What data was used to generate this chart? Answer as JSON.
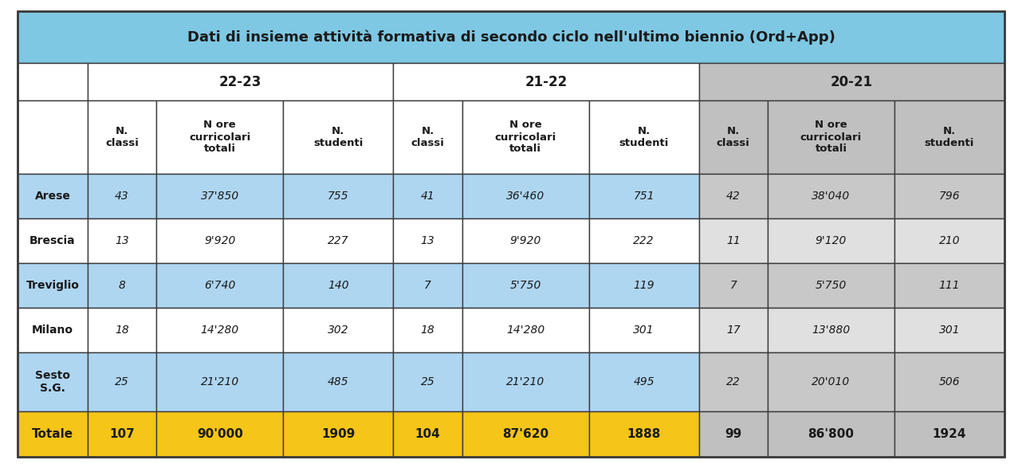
{
  "title": "Dati di insieme attività formativa di secondo ciclo nell'ultimo biennio (Ord+App)",
  "title_bg": "#7EC8E3",
  "col_headers": [
    "N.\nclassi",
    "N ore\ncurricolari\ntotali",
    "N.\nstudenti"
  ],
  "row_labels": [
    "Arese",
    "Brescia",
    "Treviglio",
    "Milano",
    "Sesto\nS.G."
  ],
  "data": [
    [
      "43",
      "37'850",
      "755",
      "41",
      "36'460",
      "751",
      "42",
      "38'040",
      "796"
    ],
    [
      "13",
      "9'920",
      "227",
      "13",
      "9'920",
      "222",
      "11",
      "9'120",
      "210"
    ],
    [
      "8",
      "6'740",
      "140",
      "7",
      "5'750",
      "119",
      "7",
      "5'750",
      "111"
    ],
    [
      "18",
      "14'280",
      "302",
      "18",
      "14'280",
      "301",
      "17",
      "13'880",
      "301"
    ],
    [
      "25",
      "21'210",
      "485",
      "25",
      "21'210",
      "495",
      "22",
      "20'010",
      "506"
    ],
    [
      "107",
      "90'000",
      "1909",
      "104",
      "87'620",
      "1888",
      "99",
      "86'800",
      "1924"
    ]
  ],
  "blue_odd_bg": "#AED6F1",
  "blue_even_bg": "#FFFFFF",
  "gray_period_bg": "#C0C0C0",
  "gray_odd_bg": "#C8C8C8",
  "gray_even_bg": "#E0E0E0",
  "gold_bg": "#F5C518",
  "border_color": "#3A3A3A",
  "text_color": "#1A1A1A"
}
